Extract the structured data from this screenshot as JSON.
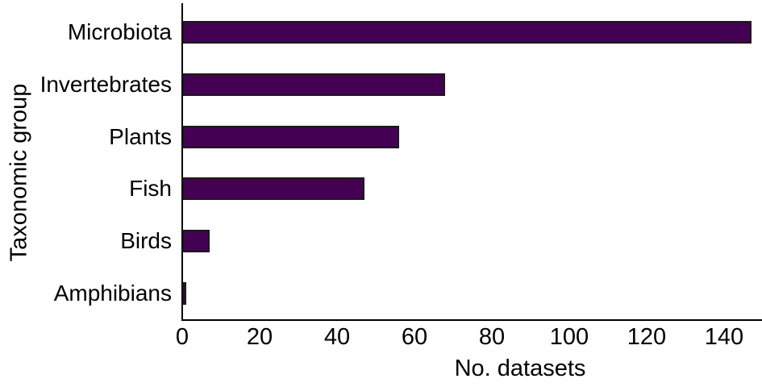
{
  "chart_data": {
    "type": "bar",
    "orientation": "horizontal",
    "title": "",
    "xlabel": "No. datasets",
    "ylabel": "Taxonomic group",
    "categories": [
      "Microbiota",
      "Invertebrates",
      "Plants",
      "Fish",
      "Birds",
      "Amphibians"
    ],
    "values": [
      147,
      68,
      56,
      47,
      7,
      1
    ],
    "xticks": [
      0,
      20,
      40,
      60,
      80,
      100,
      120,
      140
    ],
    "xlim": [
      0,
      150
    ],
    "grid": false,
    "legend": null,
    "bar_color": "#440154",
    "bar_border_color": "#1a1a1a",
    "axis_color": "#000000",
    "text_color": "#000000",
    "background_color": "#ffffff"
  }
}
